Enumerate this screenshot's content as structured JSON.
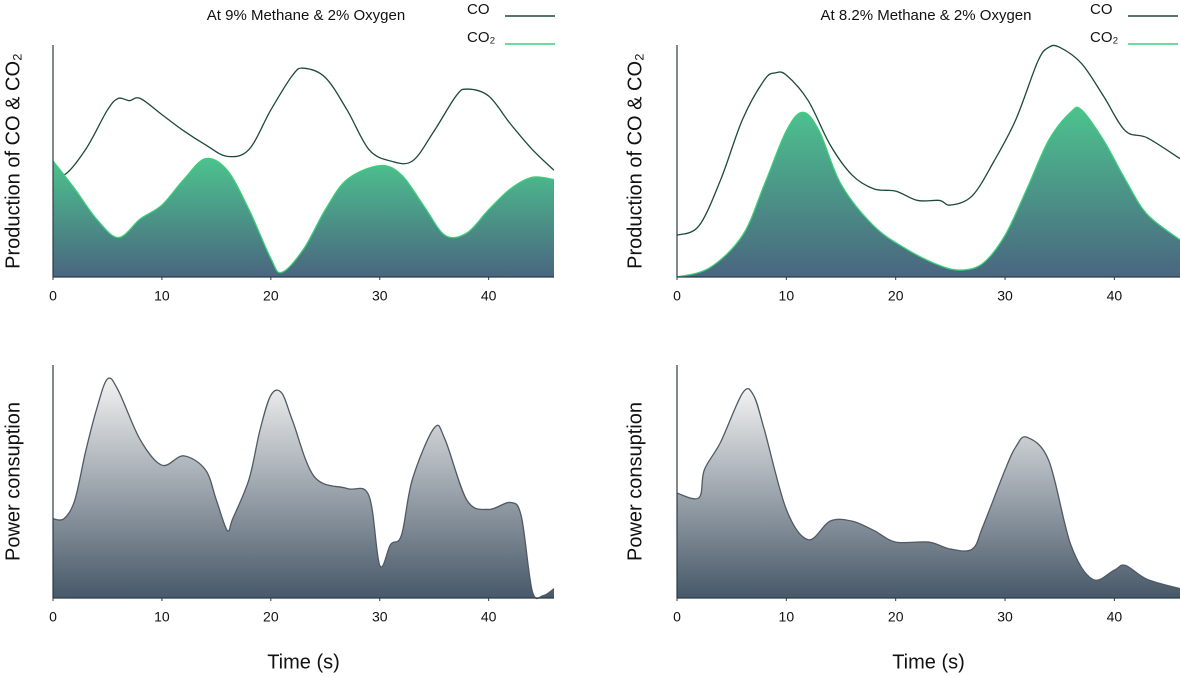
{
  "chart_data": [
    {
      "type": "area",
      "title": "At 9% Methane & 2% Oxygen",
      "y_label": "Production of CO & CO₂",
      "xlim": [
        0,
        46
      ],
      "ylim": [
        0,
        100
      ],
      "xticks": [
        0,
        10,
        20,
        30,
        40
      ],
      "legend": "top-right",
      "series": [
        {
          "name": "CO",
          "kind": "line",
          "color": "#1d4a38",
          "x": [
            0,
            1,
            3,
            5,
            6,
            7,
            8,
            10,
            12,
            14,
            16,
            18,
            20,
            22,
            23,
            25,
            27,
            29,
            31,
            33,
            35,
            37,
            38,
            40,
            42,
            44,
            46
          ],
          "values": [
            50,
            44,
            55,
            72,
            77,
            76,
            77,
            70,
            63,
            57,
            52,
            55,
            72,
            87,
            90,
            86,
            72,
            55,
            50,
            50,
            63,
            78,
            81,
            78,
            66,
            55,
            46
          ]
        },
        {
          "name": "CO₂",
          "kind": "area",
          "color": "#3ccf7a",
          "fill_colors": [
            "#4cc38e",
            "#4a6680"
          ],
          "x": [
            0,
            2,
            4,
            6,
            8,
            10,
            12,
            14,
            16,
            18,
            20,
            21,
            23,
            25,
            27,
            30,
            32,
            34,
            36,
            38,
            40,
            42,
            44,
            46
          ],
          "values": [
            50,
            38,
            25,
            17,
            25,
            31,
            42,
            51,
            46,
            29,
            8,
            2,
            12,
            29,
            42,
            48,
            44,
            31,
            18,
            19,
            29,
            38,
            43,
            42
          ]
        }
      ]
    },
    {
      "type": "area",
      "title": "At 8.2% Methane & 2% Oxygen",
      "y_label": "Production of CO & CO₂",
      "xlim": [
        0,
        46
      ],
      "ylim": [
        0,
        100
      ],
      "xticks": [
        0,
        10,
        20,
        30,
        40
      ],
      "legend": "top-right",
      "series": [
        {
          "name": "CO",
          "kind": "line",
          "color": "#1d4a38",
          "x": [
            0,
            2,
            4,
            6,
            8,
            9,
            10,
            12,
            14,
            16,
            18,
            20,
            22,
            24,
            25,
            27,
            29,
            31,
            33,
            34,
            35,
            37,
            39,
            41,
            43,
            46
          ],
          "values": [
            18,
            22,
            42,
            68,
            85,
            88,
            87,
            76,
            57,
            44,
            38,
            37,
            33,
            33,
            31,
            35,
            50,
            68,
            93,
            99,
            99,
            92,
            78,
            63,
            60,
            51
          ]
        },
        {
          "name": "CO₂",
          "kind": "area",
          "color": "#3ccf7a",
          "fill_colors": [
            "#4cc38e",
            "#4a6680"
          ],
          "x": [
            0,
            3,
            6,
            8,
            10,
            11.5,
            13,
            15,
            18,
            21,
            24,
            26,
            28,
            30,
            32,
            34,
            36,
            37,
            39,
            41,
            43,
            46
          ],
          "values": [
            0,
            4,
            18,
            40,
            63,
            71,
            63,
            40,
            22,
            12,
            5,
            3,
            6,
            18,
            38,
            59,
            71,
            72,
            59,
            42,
            27,
            16
          ]
        }
      ]
    },
    {
      "type": "area",
      "y_label": "Power consuption",
      "x_label": "Time (s)",
      "xlim": [
        0,
        46
      ],
      "ylim": [
        0,
        100
      ],
      "xticks": [
        0,
        10,
        20,
        30,
        40
      ],
      "series": [
        {
          "kind": "area",
          "color": "#4f5a66",
          "fill_colors": [
            "#f2f2f2",
            "#475868"
          ],
          "x": [
            0,
            1,
            2,
            3,
            4,
            5,
            6,
            8,
            10,
            12,
            14,
            15,
            16,
            16.5,
            18,
            19,
            20,
            21,
            22,
            24,
            27,
            29,
            30,
            31,
            32,
            33,
            35,
            36,
            38,
            40,
            42,
            43,
            44,
            45,
            46
          ],
          "values": [
            34,
            34,
            42,
            63,
            81,
            94,
            89,
            68,
            57,
            61,
            55,
            42,
            29,
            34,
            51,
            72,
            87,
            88,
            76,
            52,
            47,
            44,
            14,
            23,
            27,
            51,
            73,
            68,
            42,
            38,
            41,
            35,
            3,
            1,
            4
          ]
        }
      ]
    },
    {
      "type": "area",
      "y_label": "Power consuption",
      "x_label": "Time (s)",
      "xlim": [
        0,
        46
      ],
      "ylim": [
        0,
        100
      ],
      "xticks": [
        0,
        10,
        20,
        30,
        40
      ],
      "series": [
        {
          "kind": "area",
          "color": "#4f5a66",
          "fill_colors": [
            "#f2f2f2",
            "#475868"
          ],
          "x": [
            0,
            2,
            2.5,
            4,
            6,
            7,
            8,
            10,
            12,
            14,
            16,
            18,
            20,
            23,
            25,
            27,
            28,
            30,
            31,
            32,
            34,
            36,
            38,
            40,
            41,
            43,
            46
          ],
          "values": [
            45,
            43,
            55,
            67,
            88,
            87,
            72,
            38,
            25,
            33,
            33,
            29,
            24,
            24,
            21,
            21,
            31,
            55,
            65,
            69,
            59,
            23,
            8,
            12,
            14,
            8,
            4
          ]
        }
      ]
    }
  ]
}
